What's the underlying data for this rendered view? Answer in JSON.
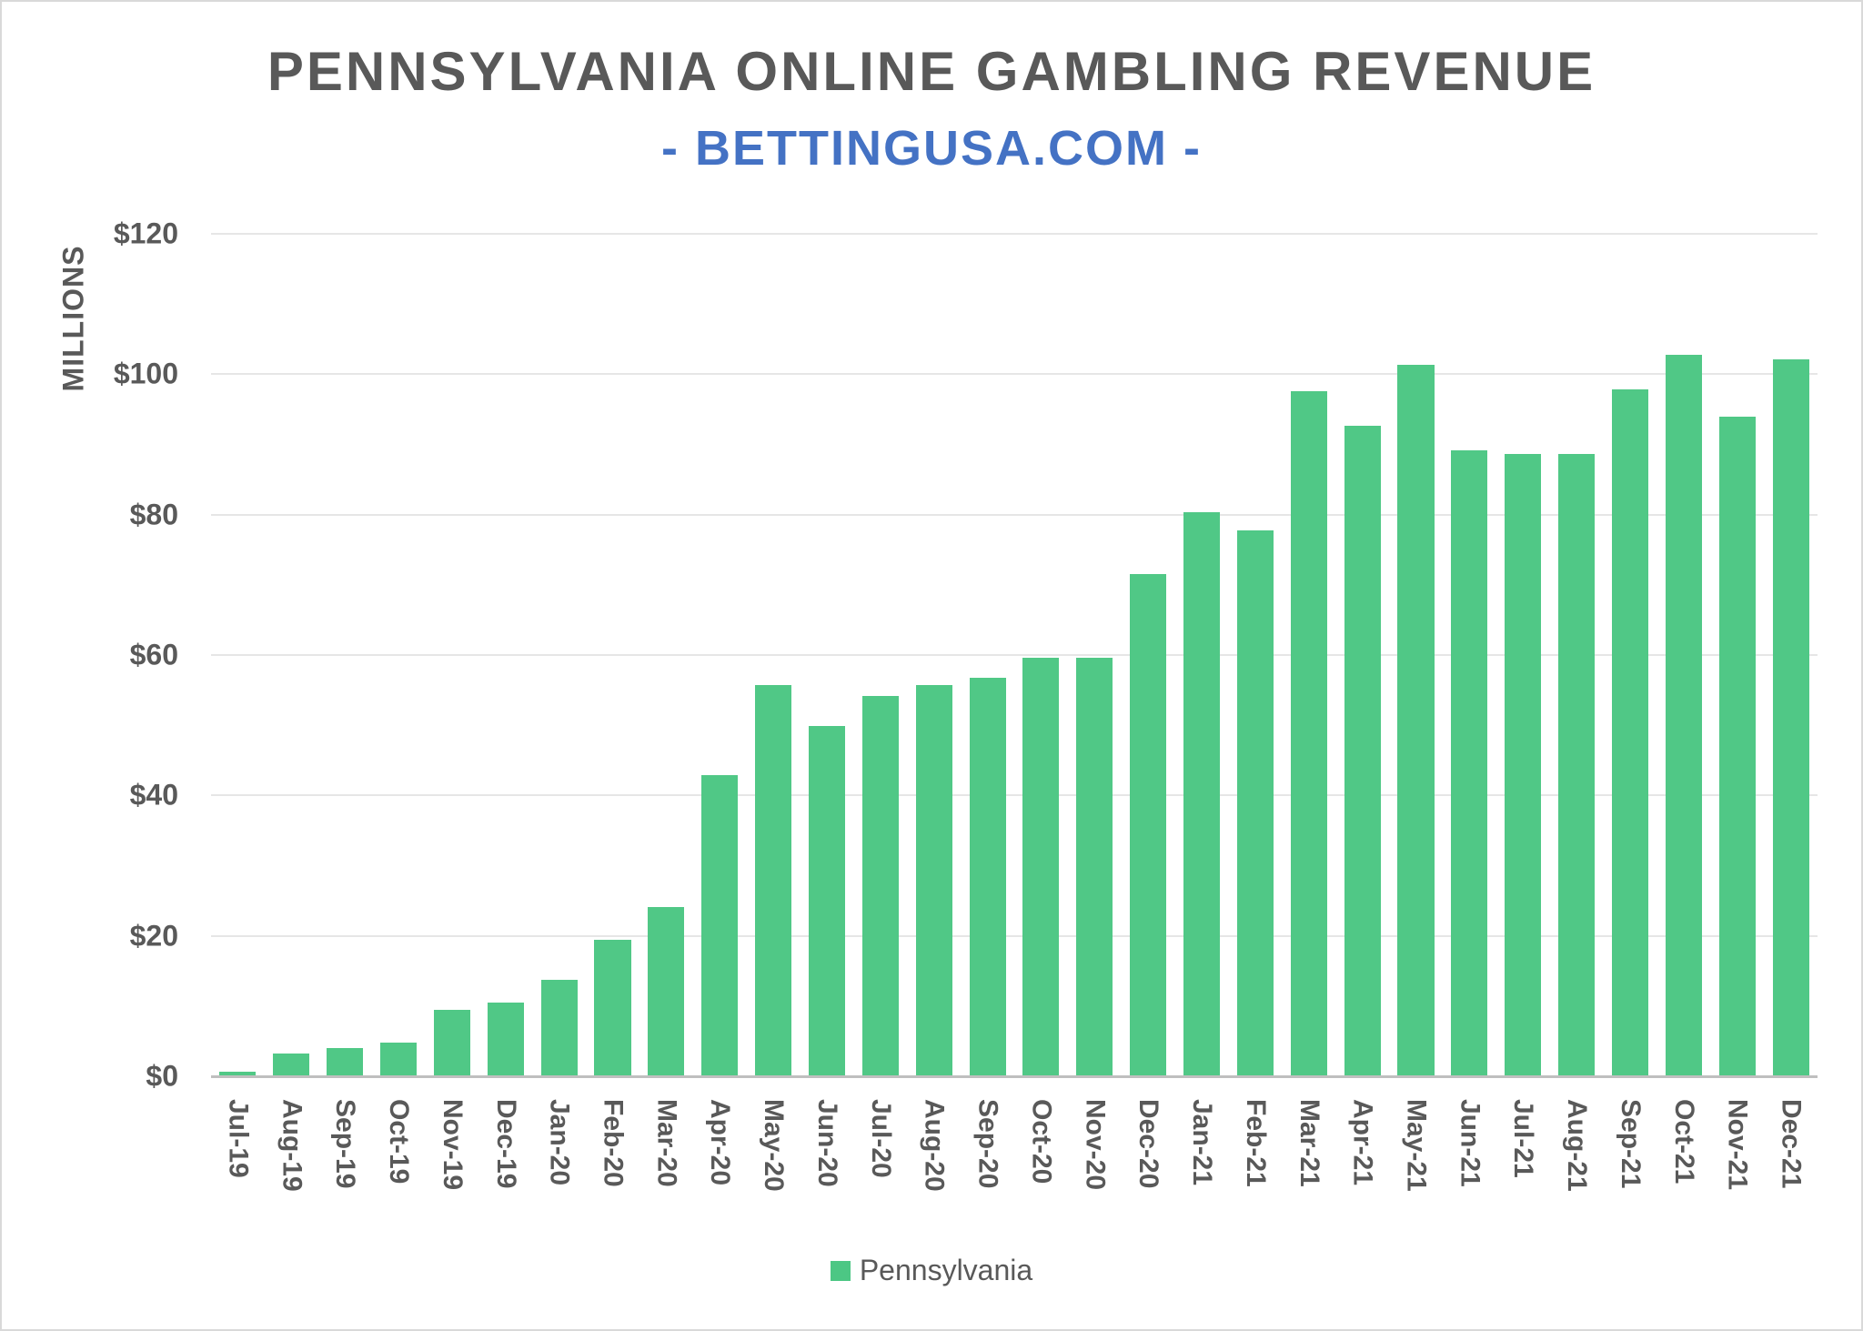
{
  "chart_data": {
    "type": "bar",
    "title": "PENNSYLVANIA ONLINE GAMBLING REVENUE",
    "subtitle": "- BETTINGUSA.COM -",
    "xlabel": "",
    "ylabel": "MILLIONS",
    "ylim": [
      0,
      120
    ],
    "yticks": [
      0,
      20,
      40,
      60,
      80,
      100,
      120
    ],
    "ytick_labels": [
      "$0",
      "$20",
      "$40",
      "$60",
      "$80",
      "$100",
      "$120"
    ],
    "grid": true,
    "legend_position": "bottom",
    "categories": [
      "Jul-19",
      "Aug-19",
      "Sep-19",
      "Oct-19",
      "Nov-19",
      "Dec-19",
      "Jan-20",
      "Feb-20",
      "Mar-20",
      "Apr-20",
      "May-20",
      "Jun-20",
      "Jul-20",
      "Aug-20",
      "Sep-20",
      "Oct-20",
      "Nov-20",
      "Dec-20",
      "Jan-21",
      "Feb-21",
      "Mar-21",
      "Apr-21",
      "May-21",
      "Jun-21",
      "Jul-21",
      "Aug-21",
      "Sep-21",
      "Oct-21",
      "Nov-21",
      "Dec-21"
    ],
    "series": [
      {
        "name": "Pennsylvania",
        "color": "#4cc784",
        "values": [
          0.7,
          3.2,
          4.0,
          4.8,
          9.5,
          10.5,
          13.8,
          19.4,
          24.1,
          42.9,
          55.7,
          49.9,
          54.2,
          55.7,
          56.8,
          59.6,
          59.6,
          71.5,
          80.4,
          77.8,
          97.6,
          92.6,
          101.3,
          89.1,
          88.6,
          88.6,
          97.8,
          102.8,
          93.9,
          102.1
        ]
      }
    ]
  },
  "colors": {
    "title": "#595959",
    "subtitle": "#4472c4",
    "bar": "#4cc784",
    "gridline": "#e6e6e6"
  }
}
